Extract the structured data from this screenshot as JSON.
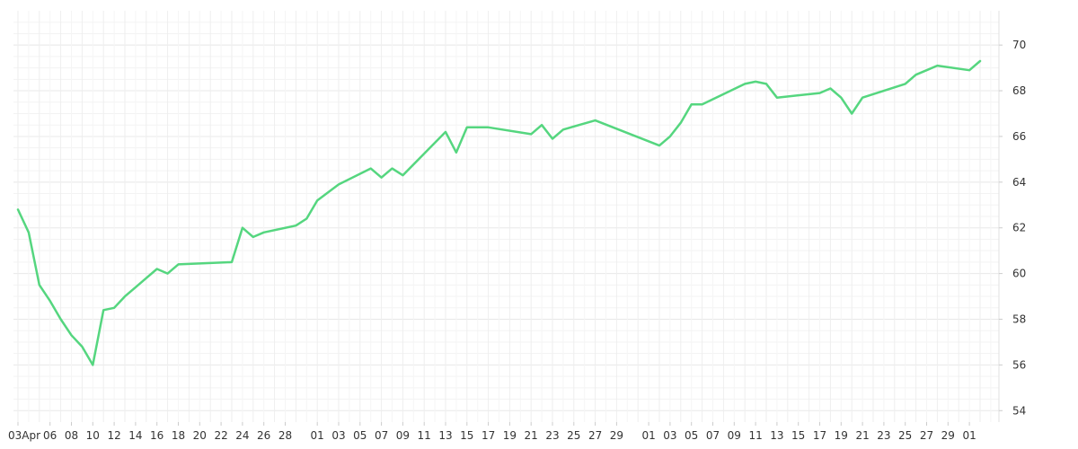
{
  "chart_data": {
    "type": "line",
    "title": "",
    "xlabel": "",
    "ylabel": "",
    "ylim": [
      53.5,
      71.5
    ],
    "y_axis_position": "right",
    "y_ticks": [
      "54",
      "56",
      "58",
      "60",
      "62",
      "64",
      "66",
      "68",
      "70"
    ],
    "x_tick_labels": [
      "03Apr",
      "06",
      "08",
      "10",
      "12",
      "14",
      "16",
      "18",
      "20",
      "22",
      "24",
      "26",
      "28",
      "01",
      "03",
      "05",
      "07",
      "09",
      "11",
      "13",
      "15",
      "17",
      "19",
      "21",
      "23",
      "25",
      "27",
      "29",
      "01",
      "03",
      "05",
      "07",
      "09",
      "11",
      "13",
      "15",
      "17",
      "19",
      "21",
      "23",
      "25",
      "27",
      "29",
      "01"
    ],
    "grid": true,
    "line_color": "#55d67f",
    "series": [
      {
        "name": "",
        "values": [
          [
            "04-03",
            62.8
          ],
          [
            "04-04",
            61.8
          ],
          [
            "04-05",
            59.5
          ],
          [
            "04-06",
            58.8
          ],
          [
            "04-07",
            58.0
          ],
          [
            "04-08",
            57.3
          ],
          [
            "04-09",
            56.8
          ],
          [
            "04-10",
            56.0
          ],
          [
            "04-11",
            58.4
          ],
          [
            "04-12",
            58.5
          ],
          [
            "04-13",
            59.0
          ],
          [
            "04-14",
            59.4
          ],
          [
            "04-15",
            59.8
          ],
          [
            "04-16",
            60.2
          ],
          [
            "04-17",
            60.0
          ],
          [
            "04-18",
            60.4
          ],
          [
            "04-23",
            60.5
          ],
          [
            "04-24",
            62.0
          ],
          [
            "04-25",
            61.6
          ],
          [
            "04-26",
            61.8
          ],
          [
            "04-29",
            62.1
          ],
          [
            "04-30",
            62.4
          ],
          [
            "05-01",
            63.2
          ],
          [
            "05-03",
            63.9
          ],
          [
            "05-06",
            64.6
          ],
          [
            "05-07",
            64.2
          ],
          [
            "05-08",
            64.6
          ],
          [
            "05-09",
            64.3
          ],
          [
            "05-13",
            66.2
          ],
          [
            "05-14",
            65.3
          ],
          [
            "05-15",
            66.4
          ],
          [
            "05-17",
            66.4
          ],
          [
            "05-21",
            66.1
          ],
          [
            "05-22",
            66.5
          ],
          [
            "05-23",
            65.9
          ],
          [
            "05-24",
            66.3
          ],
          [
            "05-27",
            66.7
          ],
          [
            "06-02",
            65.6
          ],
          [
            "06-03",
            66.0
          ],
          [
            "06-04",
            66.6
          ],
          [
            "06-05",
            67.4
          ],
          [
            "06-06",
            67.4
          ],
          [
            "06-10",
            68.3
          ],
          [
            "06-11",
            68.4
          ],
          [
            "06-12",
            68.3
          ],
          [
            "06-13",
            67.7
          ],
          [
            "06-17",
            67.9
          ],
          [
            "06-18",
            68.1
          ],
          [
            "06-19",
            67.7
          ],
          [
            "06-20",
            67.0
          ],
          [
            "06-21",
            67.7
          ],
          [
            "06-25",
            68.3
          ],
          [
            "06-26",
            68.7
          ],
          [
            "06-27",
            68.9
          ],
          [
            "06-28",
            69.1
          ],
          [
            "07-01",
            68.9
          ],
          [
            "07-02",
            69.3
          ]
        ]
      }
    ]
  }
}
